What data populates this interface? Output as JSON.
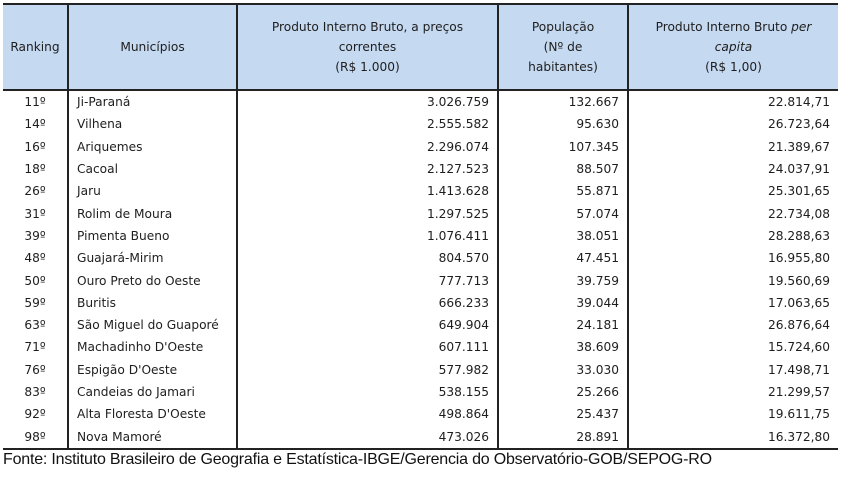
{
  "table": {
    "headers": {
      "ranking": "Ranking",
      "municipios": "Municípios",
      "pib_line1": "Produto Interno Bruto, a preços",
      "pib_line2": "correntes",
      "pib_line3": "(R$ 1.000)",
      "pop_line1": "População",
      "pop_line2": "(Nº de",
      "pop_line3": "habitantes)",
      "pc_line1": "Produto Interno Bruto",
      "pc_line1_italic": "per",
      "pc_line2_italic": "capita",
      "pc_line3": "(R$ 1,00)"
    },
    "rows": [
      {
        "ranking": "11º",
        "municipio": "Ji-Paraná",
        "pib": "3.026.759",
        "populacao": "132.667",
        "pib_per_capita": "22.814,71"
      },
      {
        "ranking": "14º",
        "municipio": "Vilhena",
        "pib": "2.555.582",
        "populacao": "95.630",
        "pib_per_capita": "26.723,64"
      },
      {
        "ranking": "16º",
        "municipio": "Ariquemes",
        "pib": "2.296.074",
        "populacao": "107.345",
        "pib_per_capita": "21.389,67"
      },
      {
        "ranking": "18º",
        "municipio": "Cacoal",
        "pib": "2.127.523",
        "populacao": "88.507",
        "pib_per_capita": "24.037,91"
      },
      {
        "ranking": "26º",
        "municipio": "Jaru",
        "pib": "1.413.628",
        "populacao": "55.871",
        "pib_per_capita": "25.301,65"
      },
      {
        "ranking": "31º",
        "municipio": "Rolim de Moura",
        "pib": "1.297.525",
        "populacao": "57.074",
        "pib_per_capita": "22.734,08"
      },
      {
        "ranking": "39º",
        "municipio": "Pimenta Bueno",
        "pib": "1.076.411",
        "populacao": "38.051",
        "pib_per_capita": "28.288,63"
      },
      {
        "ranking": "48º",
        "municipio": "Guajará-Mirim",
        "pib": "804.570",
        "populacao": "47.451",
        "pib_per_capita": "16.955,80"
      },
      {
        "ranking": "50º",
        "municipio": "Ouro Preto do Oeste",
        "pib": "777.713",
        "populacao": "39.759",
        "pib_per_capita": "19.560,69"
      },
      {
        "ranking": "59º",
        "municipio": "Buritis",
        "pib": "666.233",
        "populacao": "39.044",
        "pib_per_capita": "17.063,65"
      },
      {
        "ranking": "63º",
        "municipio": "São Miguel do Guaporé",
        "pib": "649.904",
        "populacao": "24.181",
        "pib_per_capita": "26.876,64"
      },
      {
        "ranking": "71º",
        "municipio": "Machadinho D'Oeste",
        "pib": "607.111",
        "populacao": "38.609",
        "pib_per_capita": "15.724,60"
      },
      {
        "ranking": "76º",
        "municipio": "Espigão D'Oeste",
        "pib": "577.982",
        "populacao": "33.030",
        "pib_per_capita": "17.498,71"
      },
      {
        "ranking": "83º",
        "municipio": "Candeias do Jamari",
        "pib": "538.155",
        "populacao": "25.266",
        "pib_per_capita": "21.299,57"
      },
      {
        "ranking": "92º",
        "municipio": "Alta Floresta D'Oeste",
        "pib": "498.864",
        "populacao": "25.437",
        "pib_per_capita": "19.611,75"
      },
      {
        "ranking": "98º",
        "municipio": "Nova Mamoré",
        "pib": "473.026",
        "populacao": "28.891",
        "pib_per_capita": "16.372,80"
      }
    ]
  },
  "footer": {
    "source": "Fonte: Instituto Brasileiro de Geografia e Estatística-IBGE/Gerencia do Observatório-GOB/SEPOG-RO"
  },
  "colors": {
    "header_background": "#c5d9f1",
    "border": "#222222",
    "text": "#1e1e1e"
  }
}
